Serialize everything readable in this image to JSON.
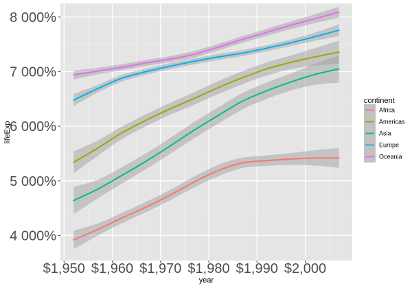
{
  "chart_data": {
    "type": "line",
    "xlabel": "year",
    "ylabel": "lifeExp",
    "xlim": [
      1949.25,
      2009.75
    ],
    "ylim": [
      3540,
      8250
    ],
    "x_ticks": [
      1950,
      1960,
      1970,
      1980,
      1990,
      2000
    ],
    "x_tick_labels": [
      "$1,950",
      "$1,960",
      "$1,970",
      "$1,980",
      "$1,990",
      "$2,000"
    ],
    "y_ticks": [
      4000,
      5000,
      6000,
      7000,
      8000
    ],
    "y_tick_labels": [
      "4 000%",
      "5 000%",
      "6 000%",
      "7 000%",
      "8 000%"
    ],
    "grid": true,
    "smoothing": "loess with confidence band",
    "background": "#e5e5e5",
    "band_color": "#999999",
    "legend": {
      "title": "continent",
      "position": "right"
    },
    "series": [
      {
        "name": "Africa",
        "color": "#f8766d",
        "x": [
          1952,
          1957,
          1962,
          1967,
          1972,
          1977,
          1982,
          1987,
          1992,
          1997,
          2002,
          2007
        ],
        "y": [
          3920,
          4110,
          4320,
          4520,
          4740,
          4980,
          5190,
          5330,
          5370,
          5400,
          5420,
          5420
        ],
        "band": [
          170,
          110,
          95,
          95,
          95,
          100,
          105,
          95,
          95,
          110,
          140,
          180
        ]
      },
      {
        "name": "Americas",
        "color": "#a3a500",
        "x": [
          1952,
          1957,
          1962,
          1967,
          1972,
          1977,
          1982,
          1987,
          1992,
          1997,
          2002,
          2007
        ],
        "y": [
          5340,
          5600,
          5880,
          6110,
          6320,
          6510,
          6710,
          6890,
          7050,
          7170,
          7270,
          7360
        ],
        "band": [
          200,
          140,
          115,
          110,
          110,
          115,
          120,
          120,
          120,
          125,
          160,
          210
        ]
      },
      {
        "name": "Asia",
        "color": "#00bf7d",
        "x": [
          1952,
          1957,
          1962,
          1967,
          1972,
          1977,
          1982,
          1987,
          1992,
          1997,
          2002,
          2007
        ],
        "y": [
          4640,
          4850,
          5100,
          5360,
          5640,
          5930,
          6200,
          6460,
          6650,
          6810,
          6950,
          7050
        ],
        "band": [
          250,
          170,
          150,
          145,
          145,
          150,
          150,
          150,
          150,
          155,
          190,
          250
        ]
      },
      {
        "name": "Europe",
        "color": "#00b0f6",
        "x": [
          1952,
          1957,
          1962,
          1967,
          1972,
          1977,
          1982,
          1987,
          1992,
          1997,
          2002,
          2007
        ],
        "y": [
          6480,
          6690,
          6880,
          7000,
          7100,
          7190,
          7270,
          7340,
          7430,
          7530,
          7640,
          7760
        ],
        "band": [
          110,
          70,
          60,
          55,
          55,
          55,
          55,
          55,
          55,
          60,
          75,
          110
        ]
      },
      {
        "name": "Oceania",
        "color": "#e76bf3",
        "x": [
          1952,
          1957,
          1962,
          1967,
          1972,
          1977,
          1982,
          1987,
          1992,
          1997,
          2002,
          2007
        ],
        "y": [
          6940,
          7010,
          7080,
          7160,
          7230,
          7320,
          7450,
          7590,
          7720,
          7850,
          7970,
          8090
        ],
        "band": [
          80,
          60,
          55,
          55,
          55,
          60,
          60,
          60,
          65,
          70,
          80,
          100
        ]
      }
    ]
  }
}
